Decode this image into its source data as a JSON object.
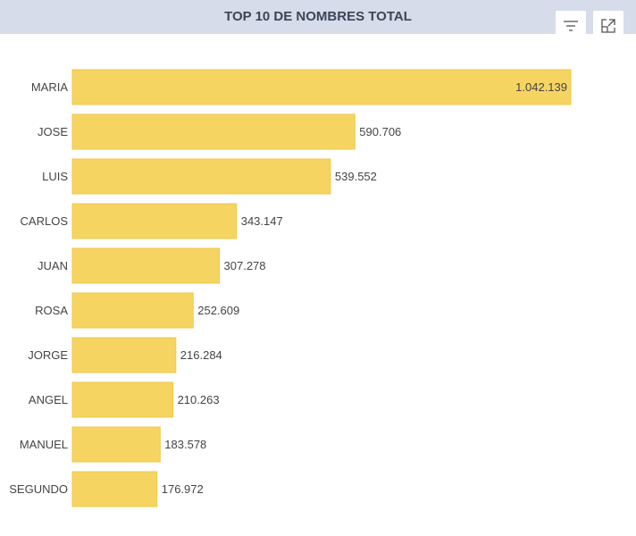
{
  "header": {
    "title": "TOP 10 DE NOMBRES TOTAL",
    "filter_icon": "filter-icon",
    "expand_icon": "expand-icon"
  },
  "chart_data": {
    "type": "bar",
    "orientation": "horizontal",
    "title": "TOP 10 DE NOMBRES TOTAL",
    "categories": [
      "MARIA",
      "JOSE",
      "LUIS",
      "CARLOS",
      "JUAN",
      "ROSA",
      "JORGE",
      "ANGEL",
      "MANUEL",
      "SEGUNDO"
    ],
    "values": [
      1042139,
      590706,
      539552,
      343147,
      307278,
      252609,
      216284,
      210263,
      183578,
      176972
    ],
    "labels": [
      "1.042.139",
      "590.706",
      "539.552",
      "343.147",
      "307.278",
      "252.609",
      "216.284",
      "210.263",
      "183.578",
      "176.972"
    ],
    "bar_color": "#f6d461",
    "bar_border": "#efc84a",
    "grid": false
  }
}
